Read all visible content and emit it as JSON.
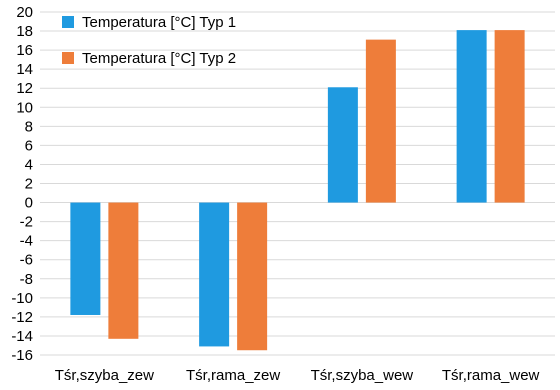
{
  "chart_data": {
    "type": "bar",
    "categories": [
      "Tśr,szyba_zew",
      "Tśr,rama_zew",
      "Tśr,szyba_wew",
      "Tśr,rama_wew"
    ],
    "series": [
      {
        "name": "Temperatura [°C] Typ 1",
        "color": "#1f9ae0",
        "values": [
          -11.8,
          -15.1,
          12.1,
          18.1
        ]
      },
      {
        "name": "Temperatura [°C] Typ 2",
        "color": "#ee7d3a",
        "values": [
          -14.3,
          -15.5,
          17.1,
          18.1
        ]
      }
    ],
    "ylim": [
      -16,
      20
    ],
    "yticks": [
      20,
      18,
      16,
      14,
      12,
      10,
      8,
      6,
      4,
      2,
      0,
      -2,
      -4,
      -6,
      -8,
      -10,
      -12,
      -14,
      -16
    ],
    "grid": true,
    "legend_position": "top-left"
  }
}
